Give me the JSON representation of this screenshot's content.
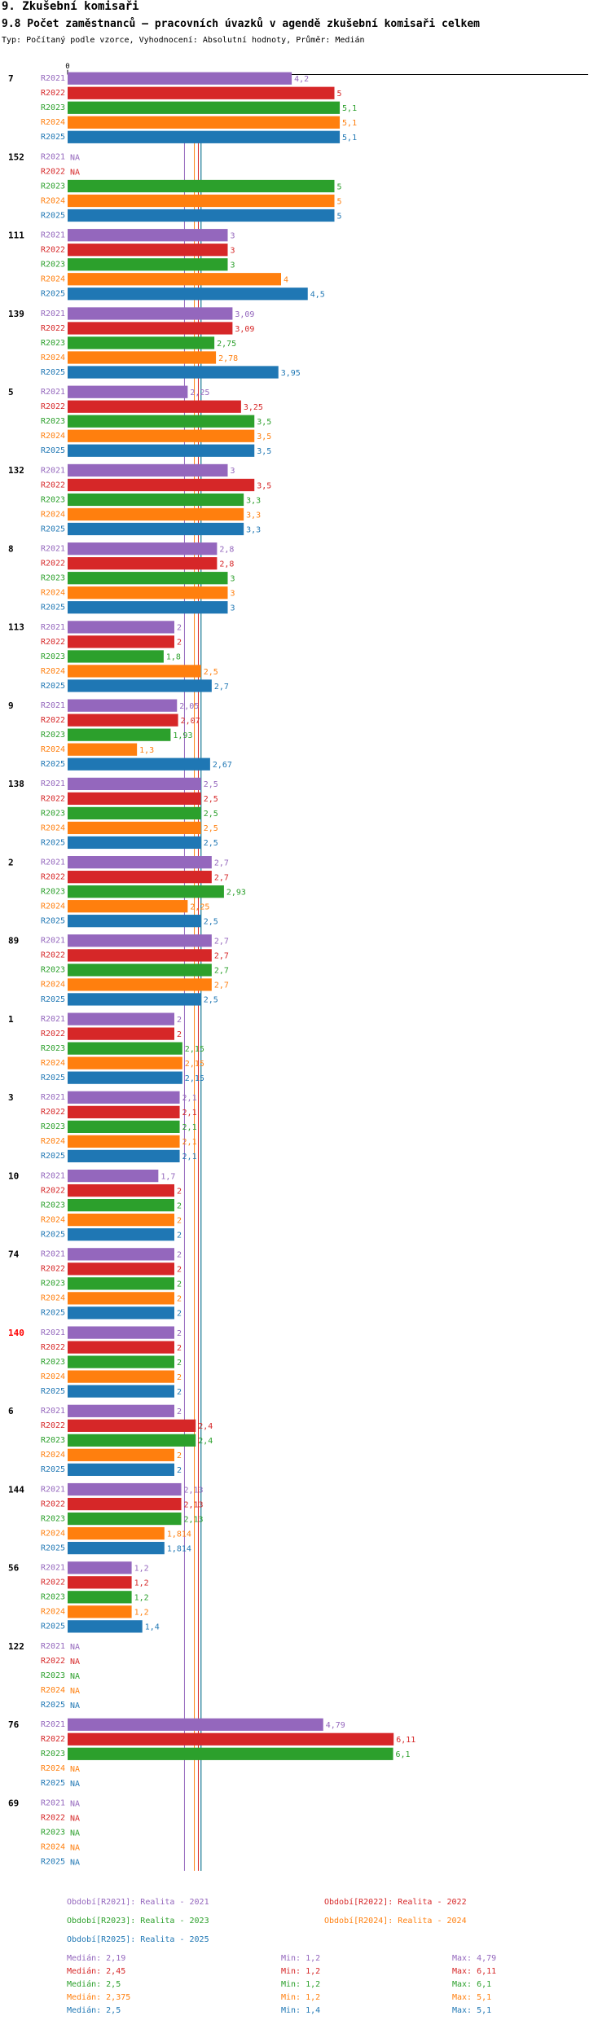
{
  "title_section": "9. Zkušební komisaři",
  "title_chart": "9.8 Počet zaměstnanců – pracovních úvazků v agendě zkušební komisaři celkem",
  "subtitle": "Typ: Počítaný podle vzorce, Vyhodnocení: Absolutní hodnoty, Průměr: Medián",
  "colors": {
    "R2021": "#9467bd",
    "R2022": "#d62728",
    "R2023": "#2ca02c",
    "R2024": "#ff7f0e",
    "R2025": "#1f77b4",
    "highlight": "#ff0000"
  },
  "chart_data": {
    "type": "bar",
    "orientation": "horizontal",
    "axis_zero_label": "0",
    "series_names": [
      "R2021",
      "R2022",
      "R2023",
      "R2024",
      "R2025"
    ],
    "groups": [
      {
        "id": "7",
        "values": [
          "4.2",
          "5",
          "5.1",
          "5.1",
          "5.1"
        ]
      },
      {
        "id": "152",
        "values": [
          "NA",
          "NA",
          "5",
          "5",
          "5"
        ]
      },
      {
        "id": "111",
        "values": [
          "3",
          "3",
          "3",
          "4",
          "4.5"
        ]
      },
      {
        "id": "139",
        "values": [
          "3.09",
          "3.09",
          "2.75",
          "2.78",
          "3.95"
        ]
      },
      {
        "id": "5",
        "values": [
          "2.25",
          "3.25",
          "3.5",
          "3.5",
          "3.5"
        ]
      },
      {
        "id": "132",
        "values": [
          "3",
          "3.5",
          "3.3",
          "3.3",
          "3.3"
        ]
      },
      {
        "id": "8",
        "values": [
          "2.8",
          "2.8",
          "3",
          "3",
          "3"
        ]
      },
      {
        "id": "113",
        "values": [
          "2",
          "2",
          "1.8",
          "2.5",
          "2.7"
        ]
      },
      {
        "id": "9",
        "values": [
          "2.05",
          "2.07",
          "1.93",
          "1.3",
          "2.67"
        ]
      },
      {
        "id": "138",
        "values": [
          "2.5",
          "2.5",
          "2.5",
          "2.5",
          "2.5"
        ]
      },
      {
        "id": "2",
        "values": [
          "2.7",
          "2.7",
          "2.93",
          "2.25",
          "2.5"
        ]
      },
      {
        "id": "89",
        "values": [
          "2.7",
          "2.7",
          "2.7",
          "2.7",
          "2.5"
        ]
      },
      {
        "id": "1",
        "values": [
          "2",
          "2",
          "2.15",
          "2.15",
          "2.15"
        ]
      },
      {
        "id": "3",
        "values": [
          "2.1",
          "2.1",
          "2.1",
          "2.1",
          "2.1"
        ]
      },
      {
        "id": "10",
        "values": [
          "1.7",
          "2",
          "2",
          "2",
          "2"
        ]
      },
      {
        "id": "74",
        "values": [
          "2",
          "2",
          "2",
          "2",
          "2"
        ]
      },
      {
        "id": "140",
        "values": [
          "2",
          "2",
          "2",
          "2",
          "2"
        ],
        "highlight": true
      },
      {
        "id": "6",
        "values": [
          "2",
          "2.4",
          "2.4",
          "2",
          "2"
        ]
      },
      {
        "id": "144",
        "values": [
          "2.13",
          "2.13",
          "2.13",
          "1.814",
          "1.814"
        ]
      },
      {
        "id": "56",
        "values": [
          "1.2",
          "1.2",
          "1.2",
          "1.2",
          "1.4"
        ]
      },
      {
        "id": "122",
        "values": [
          "NA",
          "NA",
          "NA",
          "NA",
          "NA"
        ]
      },
      {
        "id": "76",
        "values": [
          "4.79",
          "6.11",
          "6.1",
          "NA",
          "NA"
        ]
      },
      {
        "id": "69",
        "values": [
          "NA",
          "NA",
          "NA",
          "NA",
          "NA"
        ]
      }
    ],
    "medians": {
      "R2021": 2.19,
      "R2022": 2.45,
      "R2023": 2.5,
      "R2024": 2.375,
      "R2025": 2.5
    },
    "x_max": 6.11
  },
  "legend": {
    "periods": [
      {
        "key": "R2021",
        "text": "Období[R2021]: Realita - 2021"
      },
      {
        "key": "R2022",
        "text": "Období[R2022]: Realita - 2022"
      },
      {
        "key": "R2023",
        "text": "Období[R2023]: Realita - 2023"
      },
      {
        "key": "R2024",
        "text": "Období[R2024]: Realita - 2024"
      },
      {
        "key": "R2025",
        "text": "Období[R2025]: Realita - 2025"
      }
    ],
    "stats": [
      {
        "key": "R2021",
        "median": "Medián: 2,19",
        "min": "Min: 1,2",
        "max": "Max: 4,79"
      },
      {
        "key": "R2022",
        "median": "Medián: 2,45",
        "min": "Min: 1,2",
        "max": "Max: 6,11"
      },
      {
        "key": "R2023",
        "median": "Medián: 2,5",
        "min": "Min: 1,2",
        "max": "Max: 6,1"
      },
      {
        "key": "R2024",
        "median": "Medián: 2,375",
        "min": "Min: 1,2",
        "max": "Max: 5,1"
      },
      {
        "key": "R2025",
        "median": "Medián: 2,5",
        "min": "Min: 1,4",
        "max": "Max: 5,1"
      }
    ]
  }
}
